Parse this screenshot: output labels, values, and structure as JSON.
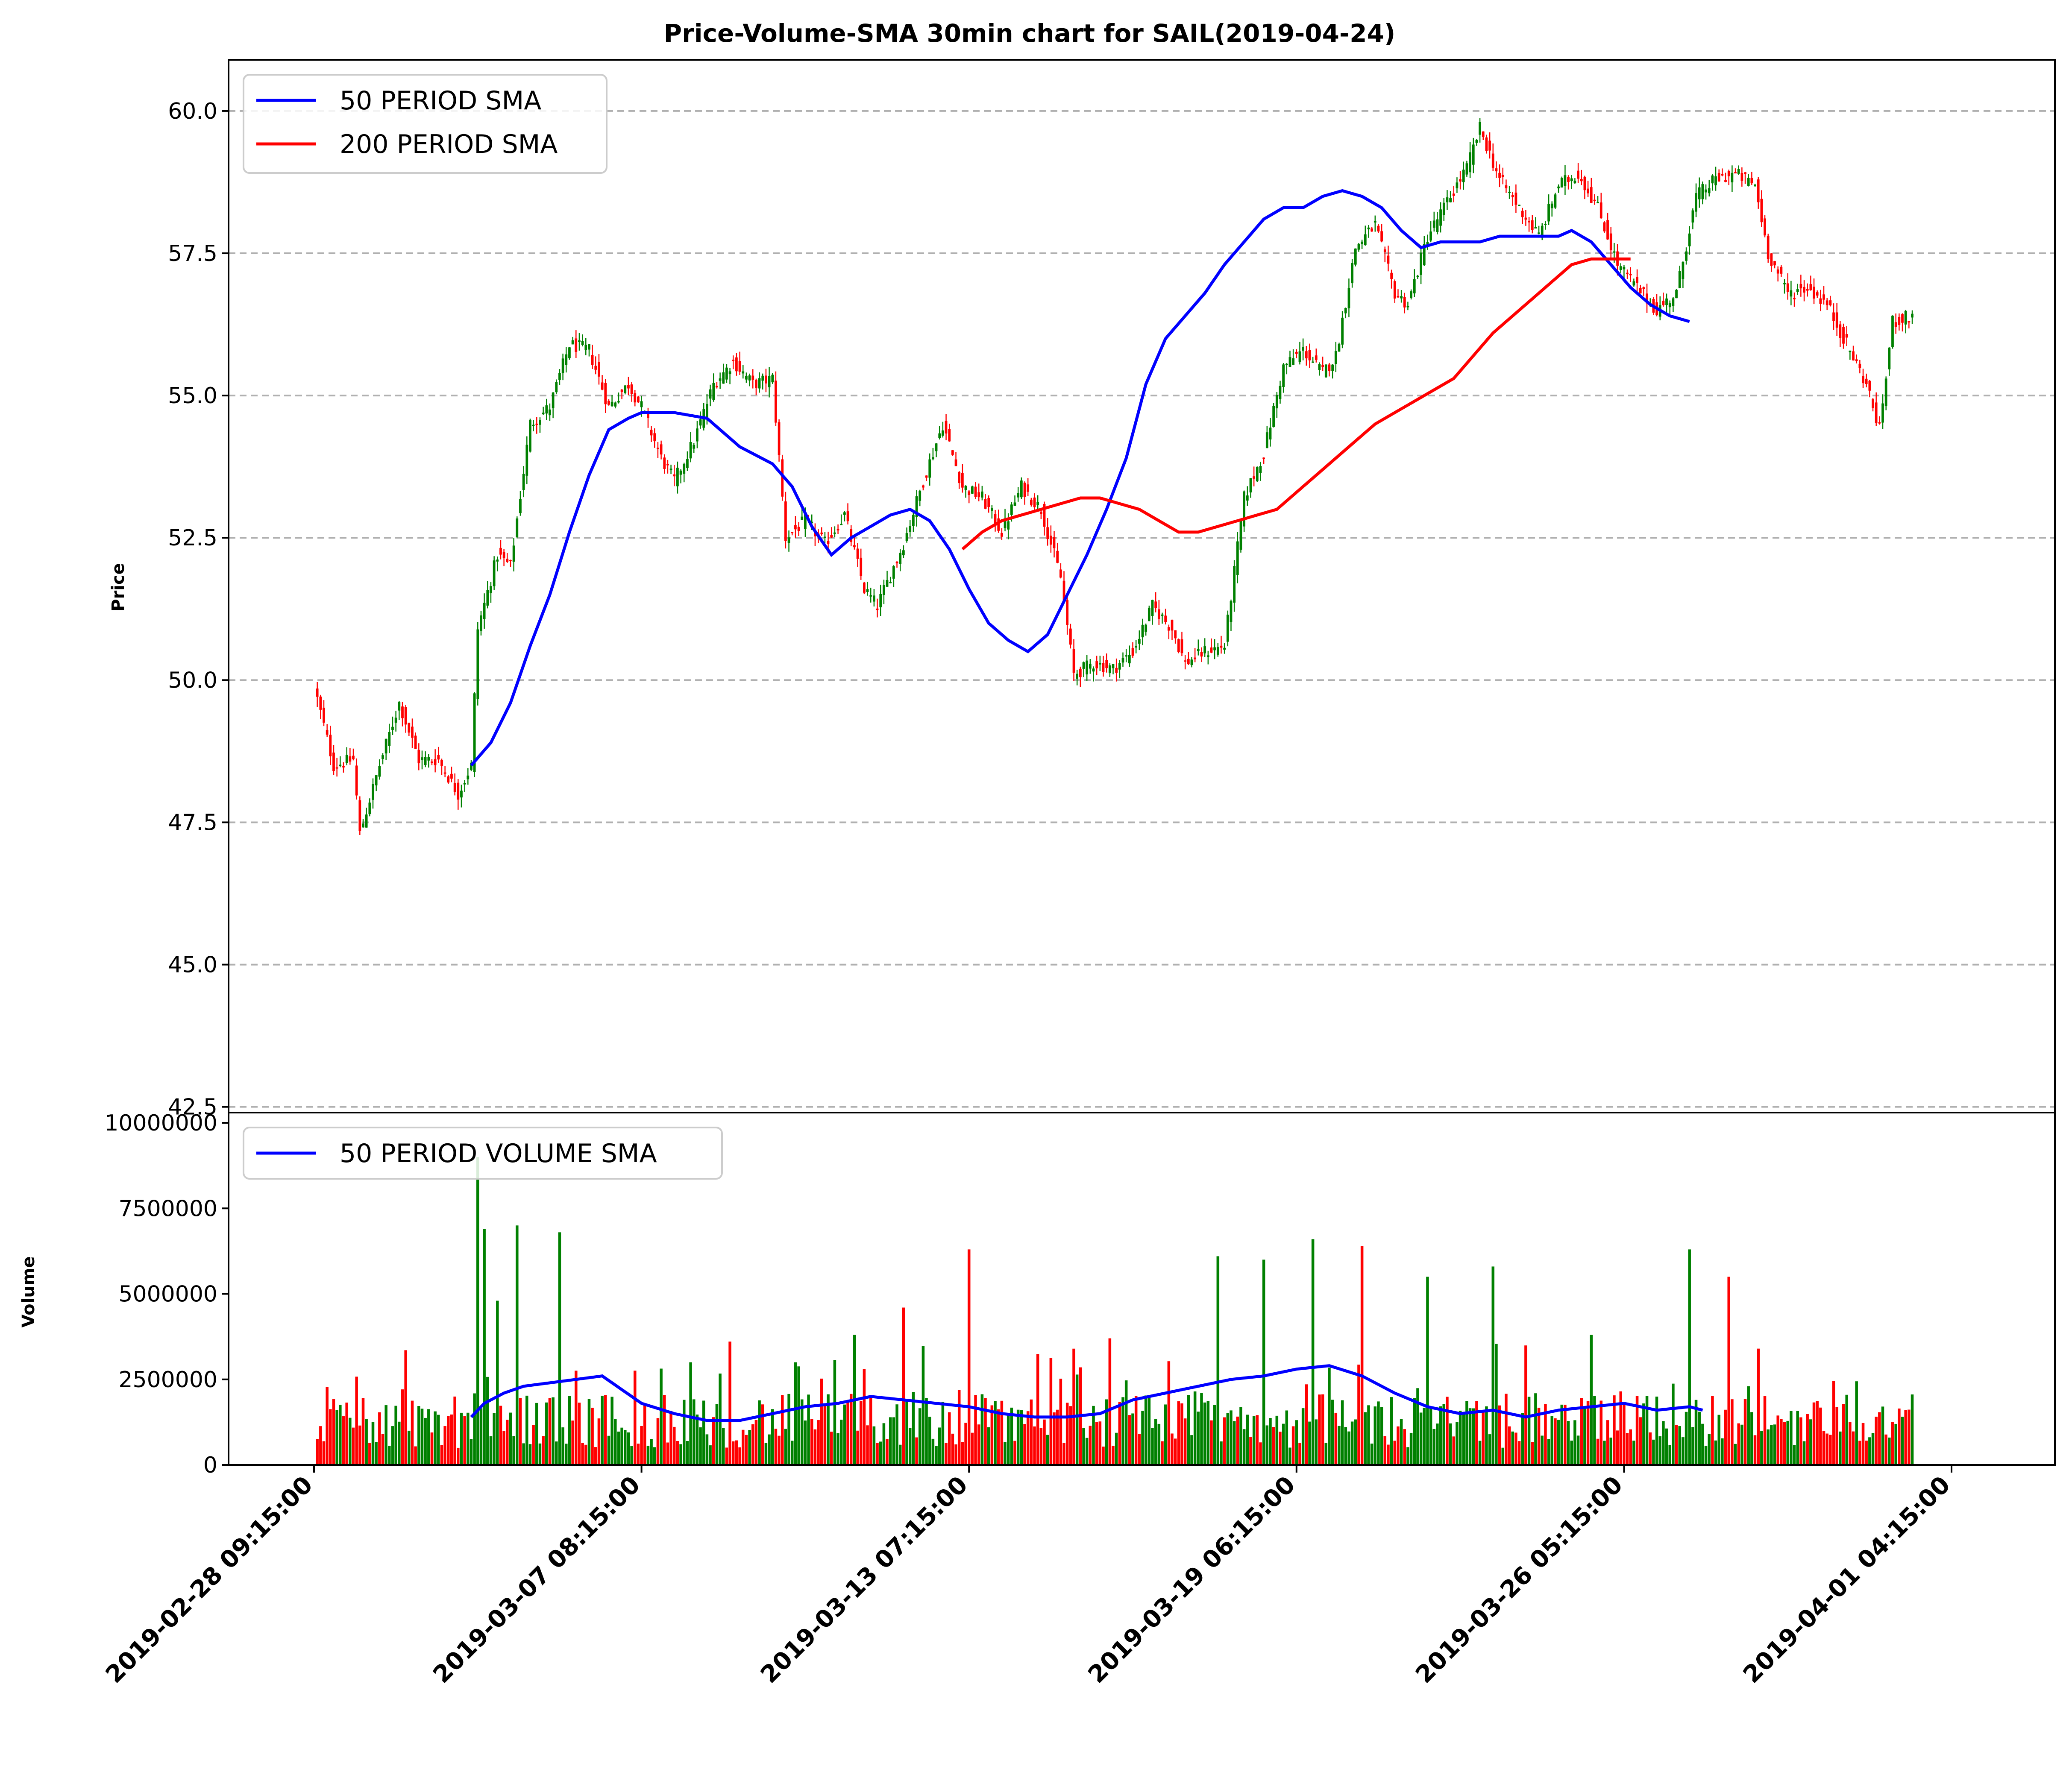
{
  "chart_data": {
    "type": "candlestick+volume",
    "title": "Price-Volume-SMA 30min chart for SAIL(2019-04-24)",
    "price_panel": {
      "ylabel": "Price",
      "ylim": [
        42.4,
        60.9
      ],
      "yticks": [
        "42.5",
        "45.0",
        "47.5",
        "50.0",
        "52.5",
        "55.0",
        "57.5",
        "60.0"
      ],
      "grid": "horizontal dashed",
      "legend": {
        "placement": "upper-left",
        "entries": [
          {
            "label": "50 PERIOD SMA",
            "color": "#0000ff"
          },
          {
            "label": "200 PERIOD SMA",
            "color": "#ff0000"
          }
        ]
      },
      "close_path": [
        [
          0,
          49.9
        ],
        [
          6,
          48.5
        ],
        [
          12,
          48.6
        ],
        [
          14,
          47.3
        ],
        [
          20,
          48.5
        ],
        [
          26,
          49.6
        ],
        [
          32,
          48.6
        ],
        [
          38,
          48.6
        ],
        [
          44,
          48.0
        ],
        [
          48,
          48.5
        ],
        [
          50,
          50.9
        ],
        [
          56,
          52.2
        ],
        [
          60,
          52.0
        ],
        [
          66,
          54.5
        ],
        [
          72,
          54.8
        ],
        [
          78,
          55.9
        ],
        [
          84,
          55.8
        ],
        [
          90,
          54.8
        ],
        [
          96,
          55.2
        ],
        [
          100,
          54.8
        ],
        [
          106,
          53.9
        ],
        [
          110,
          53.5
        ],
        [
          116,
          54.2
        ],
        [
          122,
          55.2
        ],
        [
          128,
          55.6
        ],
        [
          134,
          55.2
        ],
        [
          140,
          55.3
        ],
        [
          144,
          52.5
        ],
        [
          150,
          52.8
        ],
        [
          156,
          52.4
        ],
        [
          162,
          52.9
        ],
        [
          168,
          51.6
        ],
        [
          172,
          51.3
        ],
        [
          180,
          52.4
        ],
        [
          186,
          53.5
        ],
        [
          192,
          54.5
        ],
        [
          198,
          53.4
        ],
        [
          204,
          53.2
        ],
        [
          210,
          52.6
        ],
        [
          216,
          53.4
        ],
        [
          222,
          53.0
        ],
        [
          228,
          51.8
        ],
        [
          232,
          50.1
        ],
        [
          238,
          50.3
        ],
        [
          244,
          50.2
        ],
        [
          250,
          50.5
        ],
        [
          256,
          51.3
        ],
        [
          262,
          50.9
        ],
        [
          266,
          50.3
        ],
        [
          272,
          50.5
        ],
        [
          278,
          50.6
        ],
        [
          284,
          53.2
        ],
        [
          290,
          54.0
        ],
        [
          296,
          55.5
        ],
        [
          302,
          55.8
        ],
        [
          308,
          55.4
        ],
        [
          312,
          55.7
        ],
        [
          318,
          57.6
        ],
        [
          324,
          58.0
        ],
        [
          330,
          56.8
        ],
        [
          334,
          56.6
        ],
        [
          340,
          57.8
        ],
        [
          346,
          58.4
        ],
        [
          352,
          59.0
        ],
        [
          356,
          59.7
        ],
        [
          362,
          58.8
        ],
        [
          368,
          58.3
        ],
        [
          374,
          57.8
        ],
        [
          380,
          58.7
        ],
        [
          386,
          58.9
        ],
        [
          392,
          58.3
        ],
        [
          398,
          57.3
        ],
        [
          404,
          56.9
        ],
        [
          410,
          56.5
        ],
        [
          416,
          56.8
        ],
        [
          422,
          58.5
        ],
        [
          428,
          58.8
        ],
        [
          434,
          58.9
        ],
        [
          440,
          58.7
        ],
        [
          444,
          57.5
        ],
        [
          450,
          56.8
        ],
        [
          456,
          56.9
        ],
        [
          462,
          56.6
        ],
        [
          468,
          55.9
        ],
        [
          474,
          55.2
        ],
        [
          478,
          54.4
        ],
        [
          482,
          56.3
        ],
        [
          488,
          56.4
        ]
      ],
      "sma50": [
        [
          48,
          48.5
        ],
        [
          54,
          48.9
        ],
        [
          60,
          49.6
        ],
        [
          66,
          50.6
        ],
        [
          72,
          51.5
        ],
        [
          78,
          52.6
        ],
        [
          84,
          53.6
        ],
        [
          90,
          54.4
        ],
        [
          96,
          54.6
        ],
        [
          100,
          54.7
        ],
        [
          110,
          54.7
        ],
        [
          120,
          54.6
        ],
        [
          130,
          54.1
        ],
        [
          140,
          53.8
        ],
        [
          146,
          53.4
        ],
        [
          152,
          52.7
        ],
        [
          158,
          52.2
        ],
        [
          164,
          52.5
        ],
        [
          170,
          52.7
        ],
        [
          176,
          52.9
        ],
        [
          182,
          53.0
        ],
        [
          188,
          52.8
        ],
        [
          194,
          52.3
        ],
        [
          200,
          51.6
        ],
        [
          206,
          51.0
        ],
        [
          212,
          50.7
        ],
        [
          218,
          50.5
        ],
        [
          224,
          50.8
        ],
        [
          230,
          51.5
        ],
        [
          236,
          52.2
        ],
        [
          242,
          53.0
        ],
        [
          248,
          53.9
        ],
        [
          254,
          55.2
        ],
        [
          260,
          56.0
        ],
        [
          266,
          56.4
        ],
        [
          272,
          56.8
        ],
        [
          278,
          57.3
        ],
        [
          284,
          57.7
        ],
        [
          290,
          58.1
        ],
        [
          296,
          58.3
        ],
        [
          302,
          58.3
        ],
        [
          308,
          58.5
        ],
        [
          314,
          58.6
        ],
        [
          320,
          58.5
        ],
        [
          326,
          58.3
        ],
        [
          332,
          57.9
        ],
        [
          338,
          57.6
        ],
        [
          344,
          57.7
        ],
        [
          350,
          57.7
        ],
        [
          356,
          57.7
        ],
        [
          362,
          57.8
        ],
        [
          368,
          57.8
        ],
        [
          374,
          57.8
        ],
        [
          380,
          57.8
        ],
        [
          384,
          57.9
        ],
        [
          390,
          57.7
        ],
        [
          396,
          57.3
        ],
        [
          402,
          56.9
        ],
        [
          408,
          56.6
        ],
        [
          414,
          56.4
        ],
        [
          420,
          56.3
        ]
      ],
      "sma200": [
        [
          198,
          52.3
        ],
        [
          204,
          52.6
        ],
        [
          210,
          52.8
        ],
        [
          216,
          52.9
        ],
        [
          222,
          53.0
        ],
        [
          228,
          53.1
        ],
        [
          234,
          53.2
        ],
        [
          240,
          53.2
        ],
        [
          246,
          53.1
        ],
        [
          252,
          53.0
        ],
        [
          258,
          52.8
        ],
        [
          264,
          52.6
        ],
        [
          270,
          52.6
        ],
        [
          276,
          52.7
        ],
        [
          282,
          52.8
        ],
        [
          288,
          52.9
        ],
        [
          294,
          53.0
        ],
        [
          300,
          53.3
        ],
        [
          306,
          53.6
        ],
        [
          312,
          53.9
        ],
        [
          318,
          54.2
        ],
        [
          324,
          54.5
        ],
        [
          330,
          54.7
        ],
        [
          336,
          54.9
        ],
        [
          342,
          55.1
        ],
        [
          348,
          55.3
        ],
        [
          354,
          55.7
        ],
        [
          360,
          56.1
        ],
        [
          366,
          56.4
        ],
        [
          372,
          56.7
        ],
        [
          378,
          57.0
        ],
        [
          384,
          57.3
        ],
        [
          390,
          57.4
        ],
        [
          396,
          57.4
        ],
        [
          402,
          57.4
        ]
      ]
    },
    "volume_panel": {
      "ylabel": "Volume",
      "ylim": [
        0,
        10300000
      ],
      "yticks": [
        "0",
        "2500000",
        "5000000",
        "7500000",
        "10000000"
      ],
      "legend": {
        "placement": "upper-left",
        "entries": [
          {
            "label": "50 PERIOD VOLUME SMA",
            "color": "#0000ff"
          }
        ]
      },
      "volume_sma": [
        [
          48,
          1.4
        ],
        [
          52,
          1.8
        ],
        [
          58,
          2.1
        ],
        [
          64,
          2.3
        ],
        [
          72,
          2.4
        ],
        [
          80,
          2.5
        ],
        [
          88,
          2.6
        ],
        [
          94,
          2.2
        ],
        [
          100,
          1.8
        ],
        [
          110,
          1.5
        ],
        [
          120,
          1.3
        ],
        [
          130,
          1.3
        ],
        [
          140,
          1.5
        ],
        [
          150,
          1.7
        ],
        [
          160,
          1.8
        ],
        [
          170,
          2.0
        ],
        [
          180,
          1.9
        ],
        [
          190,
          1.8
        ],
        [
          200,
          1.7
        ],
        [
          210,
          1.5
        ],
        [
          220,
          1.4
        ],
        [
          230,
          1.4
        ],
        [
          240,
          1.5
        ],
        [
          250,
          1.9
        ],
        [
          260,
          2.1
        ],
        [
          270,
          2.3
        ],
        [
          280,
          2.5
        ],
        [
          290,
          2.6
        ],
        [
          300,
          2.8
        ],
        [
          310,
          2.9
        ],
        [
          320,
          2.6
        ],
        [
          330,
          2.1
        ],
        [
          340,
          1.7
        ],
        [
          350,
          1.5
        ],
        [
          360,
          1.6
        ],
        [
          370,
          1.4
        ],
        [
          380,
          1.6
        ],
        [
          390,
          1.7
        ],
        [
          400,
          1.8
        ],
        [
          410,
          1.6
        ],
        [
          420,
          1.7
        ],
        [
          424,
          1.6
        ]
      ],
      "spikes": [
        [
          50,
          9.0,
          "green"
        ],
        [
          52,
          6.9,
          "green"
        ],
        [
          56,
          4.8,
          "green"
        ],
        [
          62,
          7.0,
          "green"
        ],
        [
          75,
          6.8,
          "green"
        ],
        [
          115,
          3.0,
          "green"
        ],
        [
          165,
          3.8,
          "green"
        ],
        [
          180,
          4.6,
          "red"
        ],
        [
          200,
          6.3,
          "red"
        ],
        [
          276,
          6.1,
          "green"
        ],
        [
          290,
          6.0,
          "green"
        ],
        [
          305,
          6.6,
          "green"
        ],
        [
          320,
          6.4,
          "red"
        ],
        [
          340,
          5.5,
          "green"
        ],
        [
          360,
          5.8,
          "green"
        ],
        [
          390,
          3.8,
          "green"
        ],
        [
          420,
          6.3,
          "green"
        ],
        [
          432,
          5.5,
          "red"
        ],
        [
          441,
          3.4,
          "red"
        ]
      ]
    },
    "x_axis": {
      "tick_labels": [
        "2019-02-28 09:15:00",
        "2019-03-07 08:15:00",
        "2019-03-13 07:15:00",
        "2019-03-19 06:15:00",
        "2019-03-26 05:15:00",
        "2019-04-01 04:15:00"
      ],
      "tick_positions": [
        0,
        100,
        200,
        300,
        400,
        500
      ],
      "n_candles": 510
    },
    "colors": {
      "up": "#008000",
      "down": "#ff0000",
      "sma50": "#0000ff",
      "sma200": "#ff0000",
      "grid": "#b0b0b0"
    }
  }
}
